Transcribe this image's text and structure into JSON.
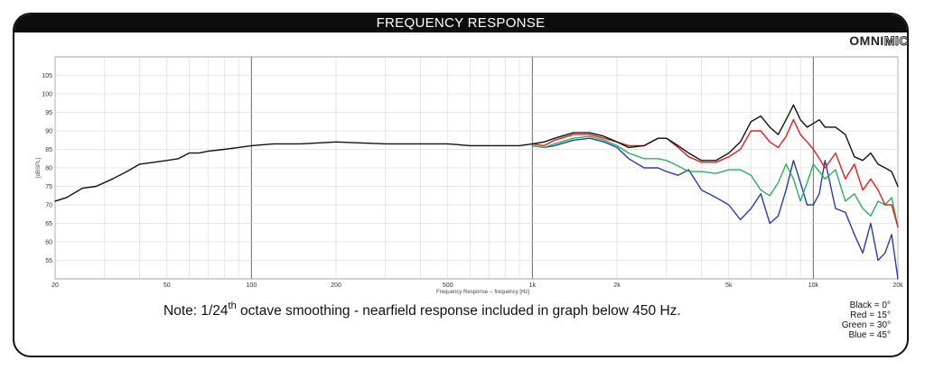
{
  "chart_data": {
    "type": "line",
    "title": "FREQUENCY RESPONSE",
    "xlabel": "Frequency Response -- frequency [Hz]",
    "ylabel": "[dBSPL]",
    "x_scale": "log",
    "xlim": [
      20,
      20000
    ],
    "ylim": [
      50,
      110
    ],
    "x_ticks": [
      {
        "value": 20,
        "label": "20"
      },
      {
        "value": 50,
        "label": "50"
      },
      {
        "value": 100,
        "label": "100"
      },
      {
        "value": 200,
        "label": "200"
      },
      {
        "value": 500,
        "label": "500"
      },
      {
        "value": 1000,
        "label": "1k"
      },
      {
        "value": 2000,
        "label": "2k"
      },
      {
        "value": 5000,
        "label": "5k"
      },
      {
        "value": 10000,
        "label": "10k"
      },
      {
        "value": 20000,
        "label": "20k"
      }
    ],
    "y_ticks": [
      55,
      60,
      65,
      70,
      75,
      80,
      85,
      90,
      95,
      100,
      105
    ],
    "grid": true,
    "series": [
      {
        "name": "Black = 0°",
        "color": "#111111",
        "x": [
          20,
          22,
          25,
          28,
          32,
          36,
          40,
          45,
          50,
          55,
          60,
          65,
          70,
          80,
          90,
          100,
          120,
          150,
          200,
          300,
          400,
          500,
          600,
          700,
          800,
          900,
          1000,
          1100,
          1200,
          1400,
          1600,
          1800,
          2000,
          2200,
          2500,
          2800,
          3000,
          3300,
          3600,
          4000,
          4500,
          5000,
          5500,
          6000,
          6500,
          7000,
          7500,
          8000,
          8500,
          9000,
          9500,
          10000,
          10500,
          11000,
          12000,
          13000,
          14000,
          15000,
          16000,
          17000,
          18000,
          19000,
          20000
        ],
        "y": [
          71,
          72,
          74.5,
          75,
          77,
          79,
          81,
          81.5,
          82,
          82.5,
          84,
          84,
          84.5,
          85,
          85.5,
          86,
          86.5,
          86.5,
          87,
          86.5,
          86.5,
          86.5,
          86,
          86,
          86,
          86,
          86.5,
          87,
          88,
          89.5,
          89.5,
          88.5,
          87,
          85.5,
          86,
          88,
          88,
          86,
          84,
          82,
          82,
          84,
          87,
          92.5,
          94,
          91,
          89,
          93,
          97,
          93,
          91,
          92,
          93,
          91,
          91,
          89,
          83,
          82,
          84,
          81,
          80,
          79,
          75
        ]
      },
      {
        "name": "Red = 15°",
        "color": "#e02020",
        "x": [
          1000,
          1100,
          1200,
          1400,
          1600,
          1800,
          2000,
          2200,
          2500,
          2800,
          3000,
          3300,
          3600,
          4000,
          4500,
          5000,
          5500,
          6000,
          6500,
          7000,
          7500,
          8000,
          8500,
          9000,
          9500,
          10000,
          10500,
          11000,
          12000,
          13000,
          14000,
          15000,
          16000,
          17000,
          18000,
          19000,
          20000
        ],
        "y": [
          86.5,
          86,
          87.5,
          89,
          89,
          88,
          87,
          86,
          86,
          88,
          88,
          85.5,
          83,
          81.5,
          81.5,
          83,
          85,
          90,
          90,
          87,
          85.5,
          88.5,
          93,
          89,
          87,
          85,
          82.5,
          80,
          84,
          77,
          81,
          74,
          77,
          74,
          70,
          70,
          64
        ]
      },
      {
        "name": "Green = 30°",
        "color": "#2ab060",
        "x": [
          1000,
          1100,
          1200,
          1400,
          1600,
          1800,
          2000,
          2200,
          2500,
          2800,
          3000,
          3300,
          3600,
          4000,
          4500,
          5000,
          5500,
          6000,
          6500,
          7000,
          7500,
          8000,
          8500,
          9000,
          9500,
          10000,
          10500,
          11000,
          12000,
          13000,
          14000,
          15000,
          16000,
          17000,
          18000,
          19000,
          20000
        ],
        "y": [
          86,
          85.5,
          86.5,
          88,
          88.5,
          87.5,
          86,
          84,
          82.5,
          82.5,
          82,
          80.5,
          79,
          79,
          78.5,
          79.5,
          79.5,
          78,
          74,
          72.5,
          76,
          81,
          77,
          71,
          76,
          81,
          79,
          77,
          79.5,
          71,
          73,
          69,
          67,
          71,
          70,
          72,
          64
        ]
      },
      {
        "name": "Blue = 45°",
        "color": "#2a3caa",
        "x": [
          1000,
          1100,
          1200,
          1400,
          1600,
          1800,
          2000,
          2200,
          2500,
          2800,
          3000,
          3300,
          3600,
          4000,
          4500,
          5000,
          5500,
          6000,
          6500,
          7000,
          7500,
          8000,
          8500,
          9000,
          9500,
          10000,
          10500,
          11000,
          12000,
          13000,
          14000,
          15000,
          16000,
          17000,
          18000,
          19000,
          20000
        ],
        "y": [
          86,
          85.5,
          86,
          87.5,
          88,
          87,
          85.5,
          82.5,
          80,
          80,
          79,
          78,
          79.5,
          74,
          72,
          70,
          66,
          69,
          73,
          65,
          67,
          74,
          82,
          76,
          70,
          70,
          73,
          82,
          69,
          68,
          62,
          57,
          65,
          55,
          57,
          62,
          50
        ]
      }
    ]
  },
  "logo": {
    "omni": "OMNI",
    "mic": "MIC"
  },
  "note": {
    "prefix": "Note: 1/24",
    "sup": "th",
    "suffix": " octave smoothing - nearfield response included in graph below 450 Hz."
  },
  "legend": [
    "Black = 0°",
    "Red = 15°",
    "Green = 30°",
    "Blue = 45°"
  ]
}
